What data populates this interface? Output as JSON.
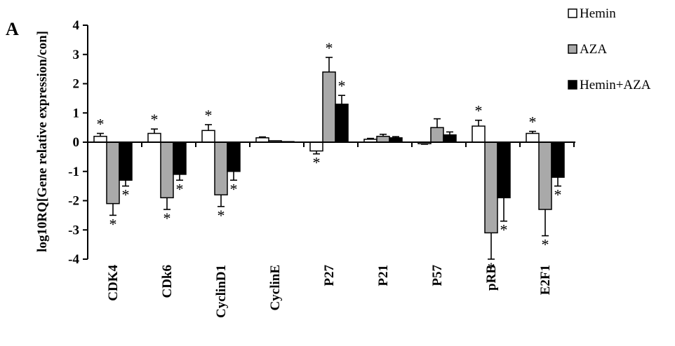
{
  "panel_label": "A",
  "chart_data": {
    "type": "bar",
    "ylabel": "log10RQ[Gene relative expression/con]",
    "xlabel": "",
    "ylim": [
      -4,
      4
    ],
    "yticks": [
      4,
      3,
      2,
      1,
      0,
      -1,
      -2,
      -3,
      -4
    ],
    "categories": [
      "CDK4",
      "CDk6",
      "CyclinD1",
      "CyclinE",
      "P27",
      "P21",
      "P57",
      "pRB",
      "E2F1"
    ],
    "series": [
      {
        "name": "Hemin",
        "fill": "#ffffff",
        "values": [
          0.2,
          0.3,
          0.4,
          0.15,
          -0.3,
          0.1,
          -0.05,
          0.55,
          0.3
        ],
        "errors": [
          0.1,
          0.15,
          0.2,
          0.03,
          0.1,
          0.03,
          0.02,
          0.2,
          0.07
        ],
        "significant": [
          true,
          true,
          true,
          false,
          true,
          false,
          false,
          true,
          true
        ]
      },
      {
        "name": "AZA",
        "fill": "#a9a9a9",
        "values": [
          -2.1,
          -1.9,
          -1.8,
          0.05,
          2.4,
          0.2,
          0.5,
          -3.1,
          -2.3
        ],
        "errors": [
          0.4,
          0.4,
          0.4,
          0.0,
          0.5,
          0.07,
          0.3,
          0.9,
          0.9
        ],
        "significant": [
          true,
          true,
          true,
          false,
          true,
          false,
          false,
          true,
          true
        ]
      },
      {
        "name": "Hemin+AZA",
        "fill": "#000000",
        "values": [
          -1.3,
          -1.1,
          -1.0,
          0.02,
          1.3,
          0.15,
          0.25,
          -1.9,
          -1.2
        ],
        "errors": [
          0.2,
          0.2,
          0.3,
          0.0,
          0.3,
          0.04,
          0.1,
          0.8,
          0.3
        ],
        "significant": [
          true,
          true,
          true,
          false,
          true,
          false,
          false,
          true,
          true
        ]
      }
    ],
    "significance_marker": "*",
    "legend_position": "top-right",
    "grid": false
  }
}
